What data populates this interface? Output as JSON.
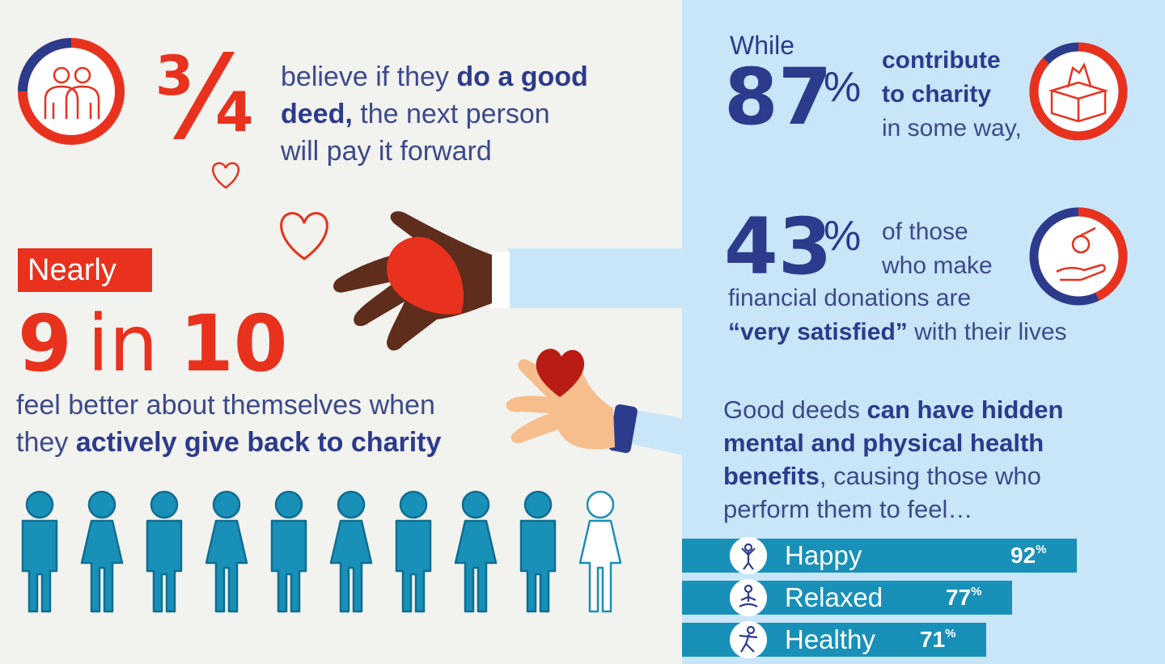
{
  "fraction_stat": {
    "numerator": "3",
    "denominator": "4",
    "text_plain_1": "believe if they ",
    "text_bold_1": "do a good",
    "text_bold_2": "deed,",
    "text_plain_2": " the next person",
    "text_plain_3": "will pay it forward",
    "ring_fraction": 0.75
  },
  "nine_in_ten": {
    "tag": "Nearly",
    "num_left": "9",
    "word": "in",
    "num_right": "10",
    "line1": "feel better about themselves when",
    "line2_plain": "they ",
    "line2_bold": "actively give back to charity",
    "people_total": 10,
    "people_filled": 9
  },
  "stat_87": {
    "prefix": "While",
    "value": "87",
    "unit": "%",
    "bold_1": "contribute",
    "bold_2": "to charity",
    "plain": "in some way,",
    "ring_fraction": 0.87
  },
  "stat_43": {
    "value": "43",
    "unit": "%",
    "line1": "of those",
    "line2": "who make",
    "line3": "financial donations are",
    "line4_bold": "“very satisfied”",
    "line4_plain": " with their lives",
    "ring_fraction": 0.43
  },
  "health": {
    "plain_1": "Good deeds ",
    "bold_1": "can have hidden",
    "bold_2": "mental and physical health",
    "bold_3": "benefits",
    "plain_2": ", causing those who",
    "plain_3": "perform them to feel…",
    "bars": [
      {
        "label": "Happy",
        "value": "92",
        "unit": "%",
        "fraction": 0.92,
        "icon": "happy-person-icon"
      },
      {
        "label": "Relaxed",
        "value": "77",
        "unit": "%",
        "fraction": 0.77,
        "icon": "meditation-icon"
      },
      {
        "label": "Healthy",
        "value": "71",
        "unit": "%",
        "fraction": 0.71,
        "icon": "exercise-icon"
      }
    ]
  },
  "colors": {
    "red": "#e8321e",
    "navy": "#2c3b8c",
    "teal": "#1990b8",
    "light_blue": "#c9e6f9",
    "background": "#f2f2ee"
  }
}
